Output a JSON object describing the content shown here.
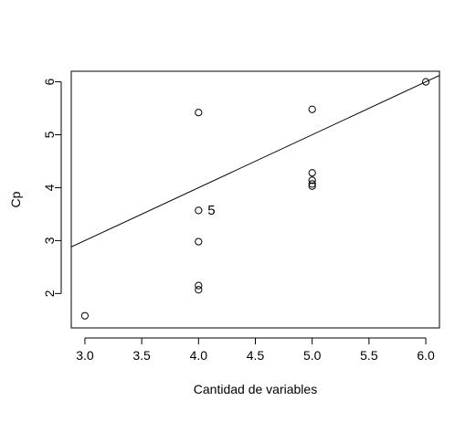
{
  "chart_data": {
    "type": "scatter",
    "title": "",
    "xlabel": "Cantidad de variables",
    "ylabel": "Cp",
    "xlim": [
      2.88,
      6.12
    ],
    "ylim": [
      1.35,
      6.2
    ],
    "x_ticks": [
      3.0,
      3.5,
      4.0,
      4.5,
      5.0,
      5.5,
      6.0
    ],
    "x_tick_labels": [
      "3.0",
      "3.5",
      "4.0",
      "4.5",
      "5.0",
      "5.5",
      "6.0"
    ],
    "y_ticks": [
      2,
      3,
      4,
      5,
      6
    ],
    "y_tick_labels": [
      "2",
      "3",
      "4",
      "5",
      "6"
    ],
    "grid": false,
    "points": [
      {
        "x": 3,
        "y": 1.58
      },
      {
        "x": 4,
        "y": 5.42
      },
      {
        "x": 4,
        "y": 3.57
      },
      {
        "x": 4,
        "y": 2.98
      },
      {
        "x": 4,
        "y": 2.15
      },
      {
        "x": 4,
        "y": 2.07
      },
      {
        "x": 5,
        "y": 5.48
      },
      {
        "x": 5,
        "y": 4.28
      },
      {
        "x": 5,
        "y": 4.14
      },
      {
        "x": 5,
        "y": 4.07
      },
      {
        "x": 5,
        "y": 4.03
      },
      {
        "x": 6,
        "y": 6.0
      }
    ],
    "reference_line": {
      "intercept": 0,
      "slope": 1
    },
    "annotations": [
      {
        "text": "5",
        "x": 4,
        "y": 3.57,
        "position": "right"
      }
    ]
  }
}
